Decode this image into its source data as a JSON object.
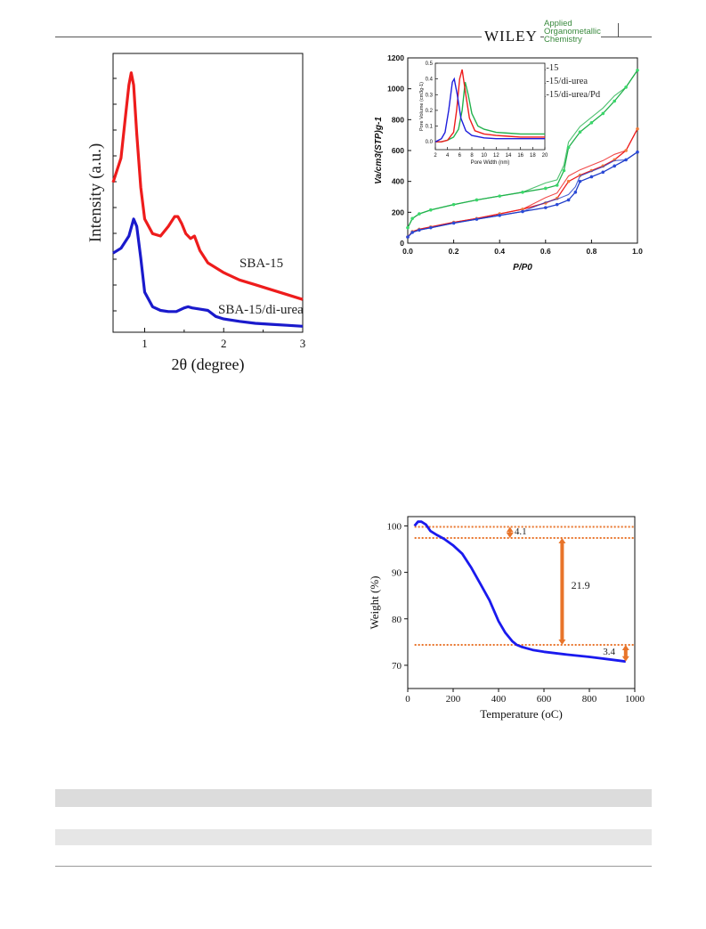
{
  "header": {
    "brand": "WILEY",
    "journal_line1": "Applied",
    "journal_line2": "Organometallic",
    "journal_line3": "Chemistry",
    "journal_first_letters": [
      "A",
      "O",
      "C"
    ]
  },
  "chart_data": [
    {
      "type": "line",
      "title": "",
      "xlabel": "2θ (degree)",
      "ylabel": "Intensity (a.u.)",
      "xlim": [
        0.6,
        3.0
      ],
      "xticks": [
        "1",
        "2",
        "3"
      ],
      "yticks_labeled": false,
      "series": [
        {
          "name": "SBA-15",
          "color": "#ee1c1c",
          "x": [
            0.6,
            0.7,
            0.76,
            0.8,
            0.83,
            0.86,
            0.9,
            0.95,
            1.0,
            1.1,
            1.2,
            1.3,
            1.38,
            1.42,
            1.47,
            1.52,
            1.58,
            1.63,
            1.7,
            1.8,
            1.9,
            2.0,
            2.2,
            2.4,
            2.6,
            2.8,
            3.0
          ],
          "y": [
            6.0,
            7.0,
            8.8,
            10.0,
            10.5,
            10.0,
            8.0,
            5.8,
            4.5,
            3.9,
            3.8,
            4.2,
            4.6,
            4.6,
            4.3,
            3.9,
            3.7,
            3.8,
            3.2,
            2.7,
            2.5,
            2.3,
            2.0,
            1.8,
            1.6,
            1.4,
            1.2
          ]
        },
        {
          "name": "SBA-15/di-urea",
          "color": "#1a1acc",
          "x": [
            0.6,
            0.7,
            0.8,
            0.86,
            0.9,
            0.95,
            1.0,
            1.1,
            1.2,
            1.3,
            1.4,
            1.5,
            1.55,
            1.6,
            1.7,
            1.8,
            1.9,
            2.0,
            2.2,
            2.4,
            2.6,
            2.8,
            3.0
          ],
          "y": [
            3.1,
            3.3,
            3.8,
            4.5,
            4.2,
            2.9,
            1.5,
            0.9,
            0.75,
            0.7,
            0.7,
            0.85,
            0.9,
            0.85,
            0.8,
            0.75,
            0.5,
            0.4,
            0.3,
            0.22,
            0.18,
            0.14,
            0.1
          ]
        }
      ],
      "annotations": [
        "SBA-15",
        "SBA-15/di-urea"
      ]
    },
    {
      "type": "line",
      "title": "",
      "xlabel": "P/P0",
      "ylabel": "Va/cm3(STP)g-1",
      "xlim": [
        0.0,
        1.0
      ],
      "ylim": [
        0,
        1200
      ],
      "xticks": [
        "0.0",
        "0.2",
        "0.4",
        "0.6",
        "0.8",
        "1.0"
      ],
      "yticks": [
        "0",
        "200",
        "400",
        "600",
        "800",
        "1000",
        "1200"
      ],
      "legend_position": "top-right",
      "legend": [
        "SBA-15",
        "SBA-15/di-urea",
        "SBA-15/di-urea/Pd"
      ],
      "series": [
        {
          "name": "SBA-15",
          "color": "#22b14c",
          "x": [
            0.0,
            0.02,
            0.05,
            0.1,
            0.2,
            0.3,
            0.4,
            0.5,
            0.6,
            0.65,
            0.68,
            0.7,
            0.75,
            0.8,
            0.85,
            0.9,
            0.95,
            1.0
          ],
          "y": [
            100,
            160,
            190,
            215,
            250,
            280,
            305,
            330,
            355,
            375,
            470,
            620,
            720,
            780,
            840,
            920,
            1010,
            1120
          ]
        },
        {
          "name": "SBA-15/di-urea",
          "color": "#ee1c1c",
          "x": [
            0.0,
            0.02,
            0.05,
            0.1,
            0.2,
            0.3,
            0.4,
            0.5,
            0.6,
            0.65,
            0.7,
            0.75,
            0.8,
            0.85,
            0.9,
            0.95,
            1.0
          ],
          "y": [
            40,
            75,
            90,
            105,
            135,
            160,
            190,
            220,
            260,
            290,
            400,
            440,
            470,
            500,
            540,
            600,
            740
          ]
        },
        {
          "name": "SBA-15/di-urea/Pd",
          "color": "#1e3cc8",
          "x": [
            0.0,
            0.02,
            0.05,
            0.1,
            0.2,
            0.3,
            0.4,
            0.5,
            0.6,
            0.65,
            0.7,
            0.73,
            0.75,
            0.8,
            0.85,
            0.9,
            0.95,
            1.0
          ],
          "y": [
            40,
            70,
            85,
            100,
            130,
            155,
            180,
            205,
            230,
            250,
            280,
            330,
            400,
            430,
            460,
            500,
            540,
            590
          ]
        }
      ],
      "inset": {
        "type": "line",
        "xlabel": "Pore Width (nm)",
        "ylabel": "Pore Volume (cm3g-1)",
        "xlim": [
          2,
          20
        ],
        "ylim": [
          -0.05,
          0.5
        ],
        "xticks": [
          "2",
          "4",
          "6",
          "8",
          "10",
          "12",
          "14",
          "16",
          "18",
          "20"
        ],
        "yticks": [
          "0.0",
          "0.1",
          "0.2",
          "0.3",
          "0.4",
          "0.5"
        ],
        "series": [
          {
            "name": "SBA-15",
            "color": "#22b14c",
            "x": [
              2,
              3,
              4,
              5,
              5.8,
              6.4,
              6.9,
              7.4,
              8,
              9,
              10,
              12,
              14,
              16,
              18,
              20
            ],
            "y": [
              0.0,
              0.0,
              0.01,
              0.03,
              0.08,
              0.2,
              0.38,
              0.3,
              0.18,
              0.1,
              0.08,
              0.06,
              0.055,
              0.05,
              0.05,
              0.05
            ]
          },
          {
            "name": "SBA-15/di-urea",
            "color": "#ee1c1c",
            "x": [
              2,
              3,
              4,
              5,
              5.5,
              6,
              6.4,
              7,
              7.6,
              8.5,
              10,
              12,
              14,
              16,
              18,
              20
            ],
            "y": [
              0.0,
              0.0,
              0.01,
              0.06,
              0.2,
              0.4,
              0.46,
              0.3,
              0.15,
              0.07,
              0.05,
              0.04,
              0.035,
              0.03,
              0.03,
              0.03
            ]
          },
          {
            "name": "SBA-15/di-urea/Pd",
            "color": "#1e1edc",
            "x": [
              2,
              3,
              3.6,
              4.2,
              4.8,
              5.1,
              5.6,
              6.2,
              7,
              8,
              10,
              12,
              14,
              16,
              18,
              20
            ],
            "y": [
              0.0,
              0.02,
              0.06,
              0.2,
              0.38,
              0.4,
              0.3,
              0.15,
              0.07,
              0.04,
              0.025,
              0.02,
              0.02,
              0.02,
              0.02,
              0.02
            ]
          }
        ]
      }
    },
    {
      "type": "line",
      "title": "",
      "xlabel": "Temperature (oC)",
      "ylabel": "Weight (%)",
      "xlim": [
        0,
        1000
      ],
      "ylim": [
        65,
        102
      ],
      "xticks": [
        "0",
        "200",
        "400",
        "600",
        "800",
        "1000"
      ],
      "yticks": [
        "70",
        "80",
        "90",
        "100"
      ],
      "series": [
        {
          "name": "",
          "color": "#1a1aee",
          "x": [
            30,
            45,
            60,
            80,
            100,
            130,
            160,
            200,
            240,
            280,
            320,
            360,
            400,
            430,
            460,
            480,
            500,
            550,
            600,
            700,
            800,
            900,
            960
          ],
          "y": [
            100.0,
            100.9,
            100.9,
            100.3,
            98.9,
            98.0,
            97.2,
            95.8,
            94.0,
            91.0,
            87.5,
            84.0,
            79.5,
            77.0,
            75.2,
            74.4,
            74.0,
            73.3,
            72.9,
            72.3,
            71.8,
            71.2,
            70.8
          ]
        }
      ],
      "reference_lines_y": [
        99.8,
        97.4,
        74.4
      ],
      "annotations": [
        "4.1",
        "21.9",
        "3.4"
      ]
    }
  ],
  "table_bars": {
    "rows": 2
  }
}
